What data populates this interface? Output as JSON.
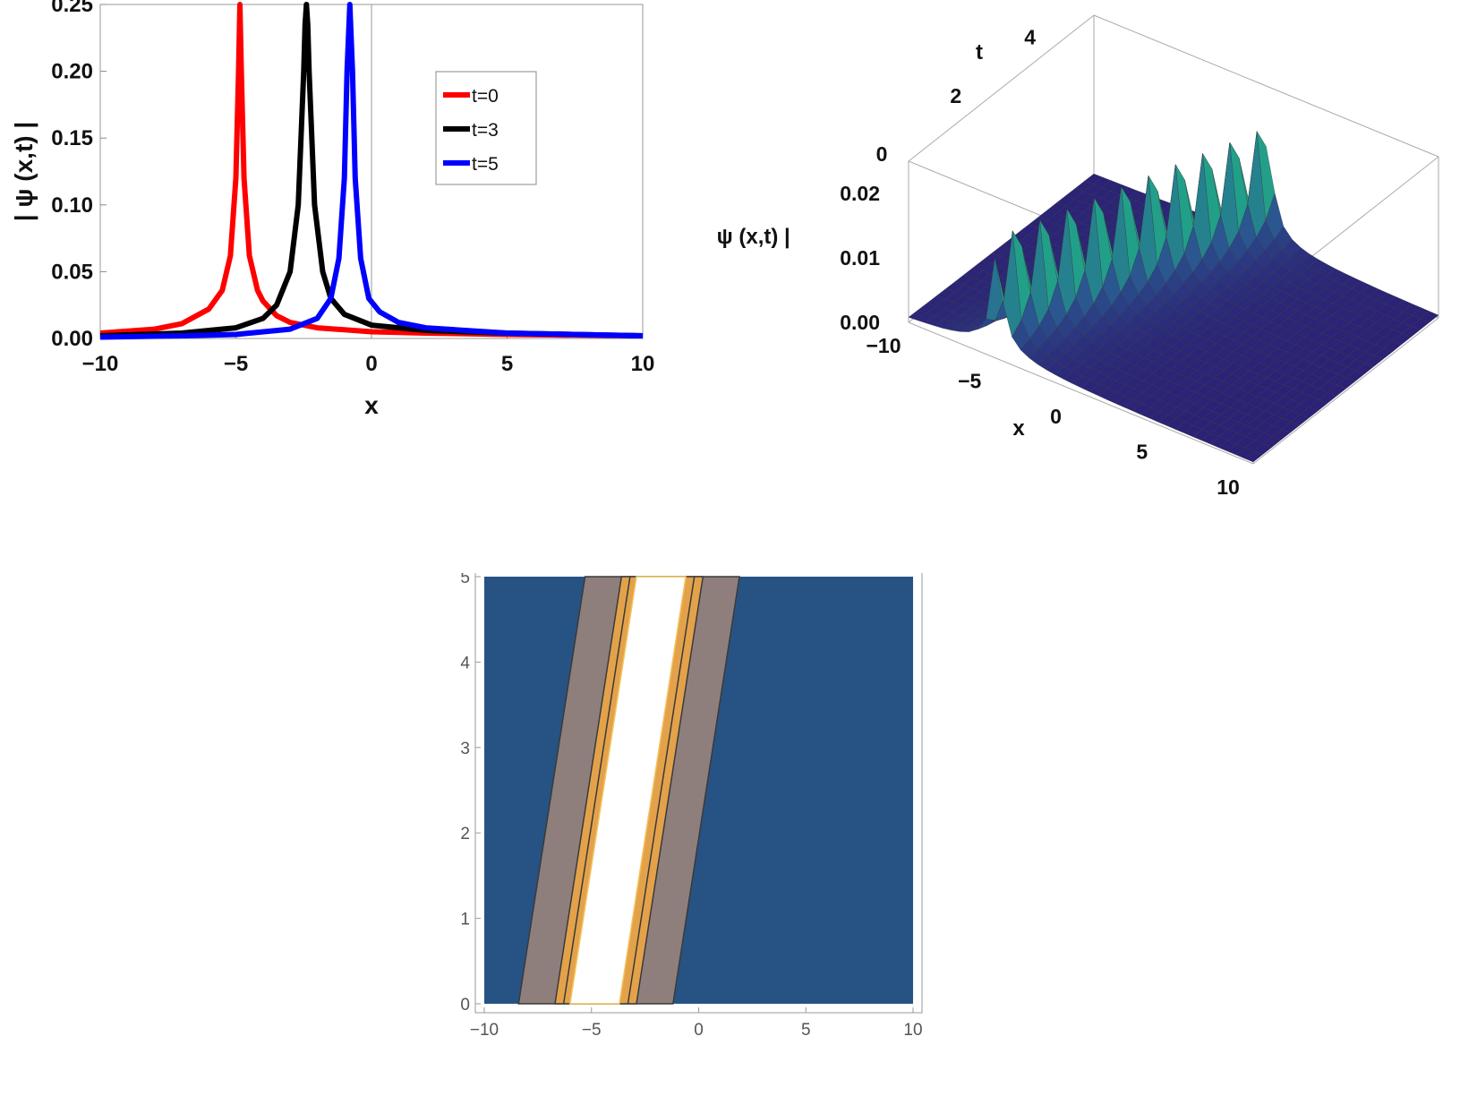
{
  "chart_data": [
    {
      "type": "line",
      "xlabel": "x",
      "ylabel": "| ψ (x,t) |",
      "xlim": [
        -10,
        10
      ],
      "ylim": [
        0,
        0.25
      ],
      "xticks": [
        "−10",
        "−5",
        "0",
        "5",
        "10"
      ],
      "yticks": [
        "0.00",
        "0.05",
        "0.10",
        "0.15",
        "0.20",
        "0.25"
      ],
      "legend_position": "top-right",
      "series": [
        {
          "name": "t=0",
          "color": "#ff0000",
          "center": -4.85,
          "x": [
            -10,
            -8,
            -7,
            -6,
            -5.5,
            -5.2,
            -5.0,
            -4.9,
            -4.85,
            -4.8,
            -4.7,
            -4.5,
            -4.2,
            -4.0,
            -3.5,
            -3,
            -2,
            0,
            2,
            5,
            10
          ],
          "y": [
            0.004,
            0.007,
            0.011,
            0.022,
            0.036,
            0.062,
            0.12,
            0.2,
            0.25,
            0.2,
            0.12,
            0.062,
            0.036,
            0.028,
            0.017,
            0.012,
            0.008,
            0.005,
            0.004,
            0.003,
            0.002
          ]
        },
        {
          "name": "t=3",
          "color": "#000000",
          "center": -2.4,
          "x": [
            -10,
            -7,
            -5,
            -4,
            -3.5,
            -3.0,
            -2.7,
            -2.5,
            -2.45,
            -2.4,
            -2.35,
            -2.3,
            -2.1,
            -1.8,
            -1.5,
            -1,
            0,
            2,
            5,
            10
          ],
          "y": [
            0.002,
            0.004,
            0.008,
            0.015,
            0.025,
            0.05,
            0.1,
            0.2,
            0.235,
            0.25,
            0.235,
            0.2,
            0.1,
            0.05,
            0.03,
            0.018,
            0.01,
            0.006,
            0.004,
            0.002
          ]
        },
        {
          "name": "t=5",
          "color": "#0000ff",
          "center": -0.8,
          "x": [
            -10,
            -7,
            -5,
            -3,
            -2,
            -1.5,
            -1.2,
            -1.0,
            -0.9,
            -0.8,
            -0.7,
            -0.6,
            -0.4,
            -0.1,
            0.3,
            1,
            2,
            5,
            10
          ],
          "y": [
            0.001,
            0.002,
            0.003,
            0.007,
            0.015,
            0.03,
            0.06,
            0.12,
            0.2,
            0.25,
            0.2,
            0.12,
            0.06,
            0.03,
            0.02,
            0.012,
            0.008,
            0.004,
            0.002
          ]
        }
      ]
    },
    {
      "type": "surface3d",
      "xlabel": "x",
      "ylabel": "t",
      "zlabel": "| ψ (x,t) |",
      "xticks": [
        "−10",
        "−5",
        "0",
        "5",
        "10"
      ],
      "tticks": [
        "0",
        "2",
        "4"
      ],
      "zticks": [
        "0.00",
        "0.01",
        "0.02"
      ],
      "colormap": [
        "#2b1e74",
        "#2a5d93",
        "#22a189",
        "#7ccf52",
        "#fde725"
      ],
      "ridge": "x = t − 4.85"
    },
    {
      "type": "contour",
      "xlim": [
        -10,
        10
      ],
      "ylim": [
        0,
        5
      ],
      "xticks": [
        "−10",
        "−5",
        "0",
        "5",
        "10"
      ],
      "yticks": [
        "0",
        "1",
        "2",
        "3",
        "4",
        "5"
      ],
      "colors": {
        "background": "#265384",
        "band_outer": "#8f7f7c",
        "band_mid": "#e3a24a",
        "core": "#ffffff"
      }
    }
  ]
}
